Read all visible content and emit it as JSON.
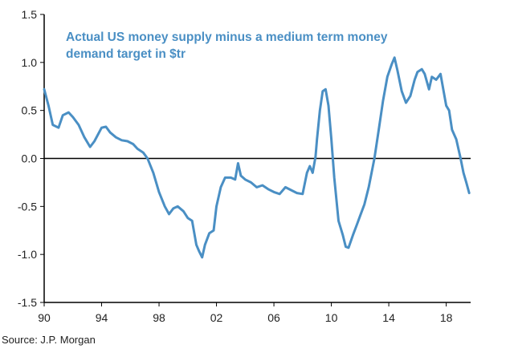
{
  "chart_data": {
    "type": "line",
    "title_lines": [
      "Actual US money supply minus a medium term money",
      "demand target in $tr"
    ],
    "source": "Source: J.P. Morgan",
    "xlabel": "",
    "ylabel": "",
    "xlim": [
      1990,
      2019.7
    ],
    "ylim": [
      -1.5,
      1.5
    ],
    "x_ticks": [
      {
        "value": 1990,
        "label": "90"
      },
      {
        "value": 1994,
        "label": "94"
      },
      {
        "value": 1998,
        "label": "98"
      },
      {
        "value": 2002,
        "label": "02"
      },
      {
        "value": 2006,
        "label": "06"
      },
      {
        "value": 2010,
        "label": "10"
      },
      {
        "value": 2014,
        "label": "14"
      },
      {
        "value": 2018,
        "label": "18"
      }
    ],
    "y_ticks": [
      {
        "value": 1.5,
        "label": "1.5"
      },
      {
        "value": 1.0,
        "label": "1.0"
      },
      {
        "value": 0.5,
        "label": "0.5"
      },
      {
        "value": 0.0,
        "label": "0.0"
      },
      {
        "value": -0.5,
        "label": "-0.5"
      },
      {
        "value": -1.0,
        "label": "-1.0"
      },
      {
        "value": -1.5,
        "label": "-1.5"
      }
    ],
    "line_color": "#4a8fc4",
    "series": [
      {
        "name": "Actual US money supply minus medium term money demand target",
        "x": [
          1990.0,
          1990.3,
          1990.6,
          1991.0,
          1991.3,
          1991.7,
          1992.0,
          1992.4,
          1992.8,
          1993.2,
          1993.5,
          1994.0,
          1994.3,
          1994.6,
          1995.0,
          1995.4,
          1995.8,
          1996.2,
          1996.5,
          1996.9,
          1997.2,
          1997.6,
          1998.0,
          1998.4,
          1998.7,
          1999.0,
          1999.3,
          1999.7,
          2000.0,
          2000.3,
          2000.6,
          2000.8,
          2001.0,
          2001.2,
          2001.5,
          2001.8,
          2002.0,
          2002.3,
          2002.6,
          2003.0,
          2003.3,
          2003.5,
          2003.7,
          2004.0,
          2004.4,
          2004.8,
          2005.2,
          2005.6,
          2006.0,
          2006.4,
          2006.8,
          2007.2,
          2007.6,
          2008.0,
          2008.3,
          2008.5,
          2008.7,
          2008.9,
          2009.0,
          2009.2,
          2009.4,
          2009.6,
          2009.8,
          2010.0,
          2010.2,
          2010.5,
          2010.8,
          2011.0,
          2011.2,
          2011.5,
          2011.8,
          2012.0,
          2012.3,
          2012.6,
          2013.0,
          2013.3,
          2013.6,
          2013.9,
          2014.2,
          2014.4,
          2014.6,
          2014.9,
          2015.2,
          2015.5,
          2015.8,
          2016.0,
          2016.3,
          2016.5,
          2016.8,
          2017.0,
          2017.3,
          2017.6,
          2018.0,
          2018.2,
          2018.4,
          2018.7,
          2019.0,
          2019.2,
          2019.4,
          2019.6
        ],
        "y": [
          0.72,
          0.55,
          0.35,
          0.32,
          0.45,
          0.48,
          0.43,
          0.35,
          0.22,
          0.12,
          0.18,
          0.32,
          0.33,
          0.27,
          0.22,
          0.19,
          0.18,
          0.15,
          0.1,
          0.06,
          0.0,
          -0.15,
          -0.35,
          -0.5,
          -0.58,
          -0.52,
          -0.5,
          -0.55,
          -0.62,
          -0.65,
          -0.9,
          -0.97,
          -1.03,
          -0.9,
          -0.78,
          -0.75,
          -0.5,
          -0.3,
          -0.2,
          -0.2,
          -0.22,
          -0.05,
          -0.18,
          -0.22,
          -0.25,
          -0.3,
          -0.28,
          -0.32,
          -0.35,
          -0.37,
          -0.3,
          -0.33,
          -0.36,
          -0.37,
          -0.15,
          -0.08,
          -0.15,
          0.02,
          0.2,
          0.5,
          0.7,
          0.72,
          0.55,
          0.2,
          -0.2,
          -0.65,
          -0.8,
          -0.92,
          -0.93,
          -0.8,
          -0.68,
          -0.6,
          -0.48,
          -0.3,
          0.0,
          0.3,
          0.6,
          0.85,
          0.98,
          1.05,
          0.92,
          0.7,
          0.58,
          0.65,
          0.82,
          0.9,
          0.93,
          0.88,
          0.72,
          0.85,
          0.82,
          0.88,
          0.55,
          0.5,
          0.3,
          0.2,
          0.0,
          -0.15,
          -0.25,
          -0.36
        ]
      }
    ]
  }
}
